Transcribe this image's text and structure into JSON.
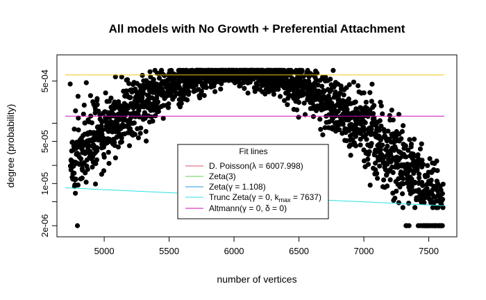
{
  "chart_data": {
    "type": "scatter",
    "title": "All models with No Growth + Preferential Attachment",
    "xlabel": "number of vertices",
    "ylabel": "degree (probability)",
    "xlim": [
      4700,
      7620
    ],
    "ylim": [
      2e-06,
      0.0011
    ],
    "y_scale": "log",
    "x_ticks": [
      5000,
      5500,
      6000,
      6500,
      7000,
      7500
    ],
    "y_ticks": [
      2e-06,
      1e-05,
      5e-05,
      0.0005
    ],
    "y_tick_labels": [
      "2e-06",
      "1e-05",
      "5e-05",
      "5e-04"
    ],
    "y_minor_ticks": [
      5e-06,
      2e-05,
      0.0001
    ],
    "grid": false,
    "points": {
      "color": "#000000",
      "peak_x": 6008,
      "peak_y": 0.00066,
      "sd": 490,
      "min_y": 2e-06
    },
    "fit_lines": [
      {
        "name": "D. Poisson",
        "label": "D. Poisson(λ = 6007.998)",
        "color": "#DF536B",
        "y": [],
        "drawn": false
      },
      {
        "name": "Zeta(3)",
        "label": "Zeta(3)",
        "color": "#61D04F",
        "y": [],
        "drawn": false
      },
      {
        "name": "Zeta",
        "label": "Zeta(γ = 1.108)",
        "color": "#2297E6",
        "y": [],
        "drawn": false
      },
      {
        "name": "Trunc Zeta",
        "label_pre": "Trunc Zeta(γ = 0, k",
        "label_sub": "max",
        "label_post": " = 7637)",
        "color": "#28E2E5",
        "x": [
          4700,
          7620
        ],
        "y": [
          8.5e-06,
          4.3e-06
        ],
        "drawn": true
      },
      {
        "name": "Altmann",
        "label": "Altmann(γ = 0, δ = 0)",
        "color": "#CD0BBC",
        "x": [
          4700,
          7620
        ],
        "y": [
          0.000131,
          0.000131
        ],
        "drawn": true
      },
      {
        "name": "Orange",
        "color": "#F5C710",
        "x": [
          4700,
          7620
        ],
        "y": [
          0.000632,
          0.000632
        ],
        "drawn": true
      }
    ],
    "legend": {
      "title": "Fit lines",
      "placement": "bottom-center"
    }
  }
}
